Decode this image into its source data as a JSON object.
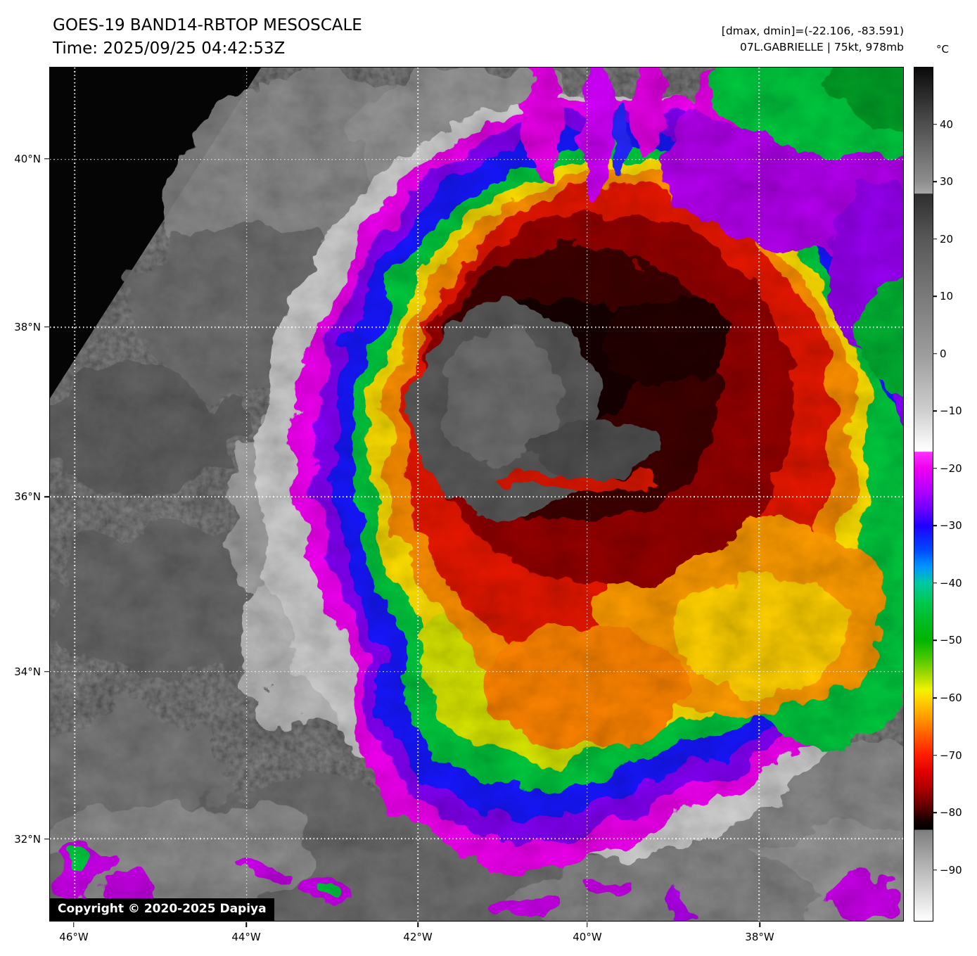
{
  "header": {
    "title": "GOES-19 BAND14-RBTOP MESOSCALE",
    "time": "Time: 2025/09/25 04:42:53Z",
    "dmax_dmin": "[dmax, dmin]=(-22.106, -83.591)",
    "storm_info": "07L.GABRIELLE | 75kt, 978mb"
  },
  "map": {
    "copyright": "Copyright © 2020-2025 Dapiya",
    "lat_gridlines": [
      {
        "label": "40°N",
        "pct": 10.78
      },
      {
        "label": "38°N",
        "pct": 30.45
      },
      {
        "label": "36°N",
        "pct": 50.29
      },
      {
        "label": "34°N",
        "pct": 70.78
      },
      {
        "label": "32°N",
        "pct": 90.37
      }
    ],
    "lon_gridlines": [
      {
        "label": "46°W",
        "pct": 2.88
      },
      {
        "label": "44°W",
        "pct": 23.05
      },
      {
        "label": "42°W",
        "pct": 43.13
      },
      {
        "label": "40°W",
        "pct": 62.96
      },
      {
        "label": "38°W",
        "pct": 83.13
      }
    ]
  },
  "colorbar": {
    "unit": "°C",
    "ticks": [
      {
        "label": "40",
        "pct": 6.71
      },
      {
        "label": "30",
        "pct": 13.42
      },
      {
        "label": "20",
        "pct": 20.13
      },
      {
        "label": "10",
        "pct": 26.85
      },
      {
        "label": "0",
        "pct": 33.56
      },
      {
        "label": "−10",
        "pct": 40.27
      },
      {
        "label": "−20",
        "pct": 46.98
      },
      {
        "label": "−30",
        "pct": 53.69
      },
      {
        "label": "−40",
        "pct": 60.4
      },
      {
        "label": "−50",
        "pct": 67.11
      },
      {
        "label": "−60",
        "pct": 73.83
      },
      {
        "label": "−70",
        "pct": 80.54
      },
      {
        "label": "−80",
        "pct": 87.25
      },
      {
        "label": "−90",
        "pct": 93.96
      }
    ],
    "gradient_stops": [
      {
        "pct": 0,
        "color": "#0a0a0a"
      },
      {
        "pct": 6.7,
        "color": "#4f4f4f"
      },
      {
        "pct": 13.4,
        "color": "#8e8e8e"
      },
      {
        "pct": 14.75,
        "color": "#a6a6a6"
      },
      {
        "pct": 14.8,
        "color": "#2e2e2e"
      },
      {
        "pct": 20.1,
        "color": "#585858"
      },
      {
        "pct": 26.9,
        "color": "#7a7a7a"
      },
      {
        "pct": 33.6,
        "color": "#9c9c9c"
      },
      {
        "pct": 40.3,
        "color": "#cfcfcf"
      },
      {
        "pct": 44.2,
        "color": "#f8f8f8"
      },
      {
        "pct": 45.0,
        "color": "#ffffff"
      },
      {
        "pct": 45.05,
        "color": "#ff30ff"
      },
      {
        "pct": 47.0,
        "color": "#ee00ee"
      },
      {
        "pct": 49.2,
        "color": "#bb00ff"
      },
      {
        "pct": 51.7,
        "color": "#6f00ff"
      },
      {
        "pct": 53.7,
        "color": "#1f00ff"
      },
      {
        "pct": 56.5,
        "color": "#0048ff"
      },
      {
        "pct": 58.5,
        "color": "#0095ff"
      },
      {
        "pct": 60.4,
        "color": "#00c9a3"
      },
      {
        "pct": 62.5,
        "color": "#00c854"
      },
      {
        "pct": 64.5,
        "color": "#00bd2a"
      },
      {
        "pct": 67.1,
        "color": "#00b400"
      },
      {
        "pct": 69.2,
        "color": "#49c800"
      },
      {
        "pct": 71.2,
        "color": "#a4d900"
      },
      {
        "pct": 72.9,
        "color": "#f2f200"
      },
      {
        "pct": 74.1,
        "color": "#ffd200"
      },
      {
        "pct": 75.9,
        "color": "#ffa200"
      },
      {
        "pct": 78.0,
        "color": "#ff6400"
      },
      {
        "pct": 80.5,
        "color": "#ff1e00"
      },
      {
        "pct": 82.6,
        "color": "#df0000"
      },
      {
        "pct": 84.6,
        "color": "#a80000"
      },
      {
        "pct": 86.7,
        "color": "#5e0000"
      },
      {
        "pct": 88.1,
        "color": "#1c0000"
      },
      {
        "pct": 89.3,
        "color": "#000000"
      },
      {
        "pct": 89.35,
        "color": "#7d7d7d"
      },
      {
        "pct": 94.0,
        "color": "#b9b9b9"
      },
      {
        "pct": 100,
        "color": "#ffffff"
      }
    ]
  }
}
